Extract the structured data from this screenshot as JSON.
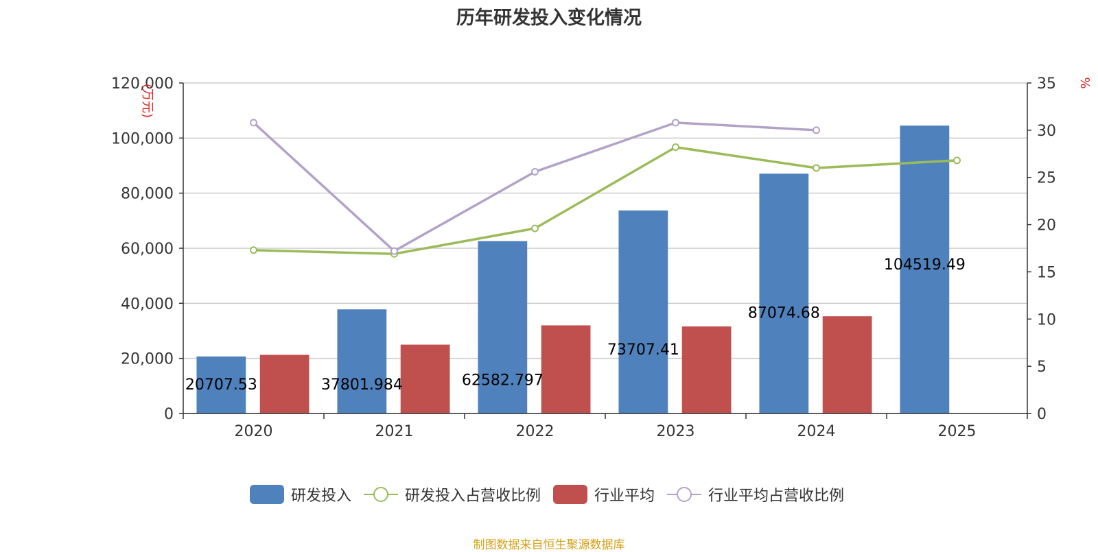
{
  "title": "历年研发投入变化情况",
  "source": "制图数据来自恒生聚源数据库",
  "chart_data": {
    "type": "bar",
    "title": "历年研发投入变化情况",
    "categories": [
      "2020",
      "2021",
      "2022",
      "2023",
      "2024",
      "2025"
    ],
    "y_left": {
      "label": "万元",
      "min": 0,
      "max": 120000,
      "ticks": [
        "0",
        "20,000",
        "40,000",
        "60,000",
        "80,000",
        "100,000",
        "120,000"
      ]
    },
    "y_right": {
      "label": "%",
      "min": 0,
      "max": 35,
      "ticks": [
        "0",
        "5",
        "10",
        "15",
        "20",
        "25",
        "30",
        "35"
      ]
    },
    "grid": true,
    "legend_position": "bottom",
    "series": [
      {
        "name": "研发投入",
        "type": "bar",
        "axis": "left",
        "color": "#4f81bd",
        "values": [
          20707.53,
          37801.984,
          62582.797,
          73707.41,
          87074.68,
          104519.49
        ],
        "labels": [
          "20707.53",
          "37801.984",
          "62582.797",
          "73707.41",
          "87074.68",
          "104519.49"
        ]
      },
      {
        "name": "研发投入占营收比例",
        "type": "line",
        "axis": "right",
        "color": "#9bbb59",
        "values": [
          17.3,
          16.9,
          19.6,
          28.2,
          26.0,
          26.8
        ]
      },
      {
        "name": "行业平均",
        "type": "bar",
        "axis": "left",
        "color": "#c0504d",
        "values": [
          21300,
          25000,
          32000,
          31600,
          35300,
          null
        ]
      },
      {
        "name": "行业平均占营收比例",
        "type": "line",
        "axis": "right",
        "color": "#b3a2c7",
        "values": [
          30.8,
          17.2,
          25.6,
          30.8,
          30.0,
          null
        ]
      }
    ]
  }
}
